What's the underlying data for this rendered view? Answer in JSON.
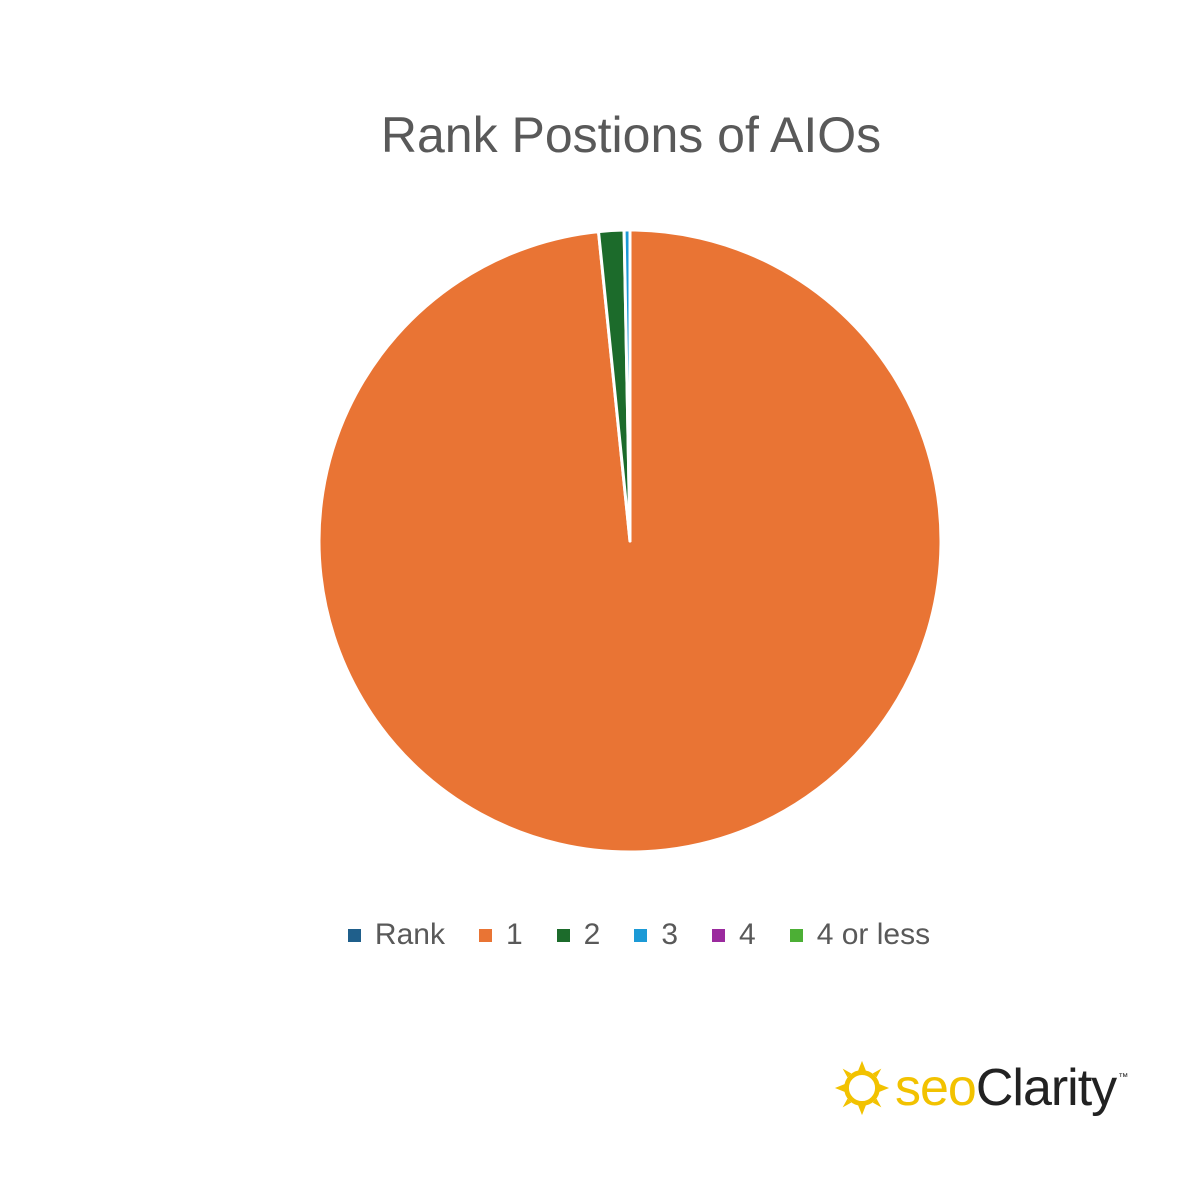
{
  "chart_data": {
    "type": "pie",
    "title": "Rank Postions of AIOs",
    "categories": [
      "Rank",
      "1",
      "2",
      "3",
      "4",
      "4 or less"
    ],
    "values": [
      0,
      97.5,
      1.3,
      0.3,
      0,
      0
    ],
    "colors": [
      "#1f5f8b",
      "#e97434",
      "#1c6b2b",
      "#1c9ad6",
      "#9b2a9e",
      "#4caf35"
    ],
    "legend_position": "bottom"
  },
  "logo": {
    "seo": "seo",
    "clarity": "Clarity",
    "tm": "™"
  }
}
